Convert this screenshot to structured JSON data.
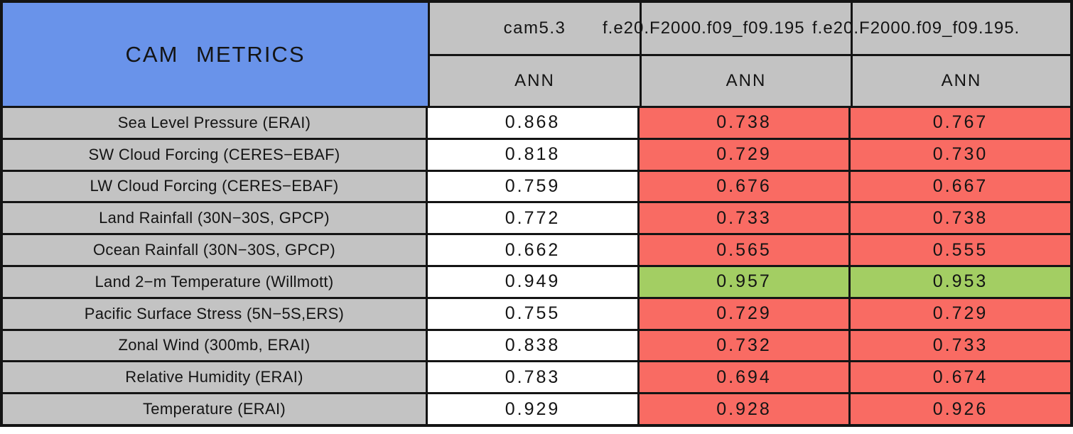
{
  "colors": {
    "header_blue": "#6993EA",
    "cell_gray": "#C3C3C3",
    "worse": "#F96B63",
    "better": "#A3CE63",
    "neutral": "#FFFFFF",
    "border_black": "#141414"
  },
  "chart_data": {
    "type": "table",
    "title": "CAM METRICS",
    "column_headers": {
      "cases": [
        "cam5.3",
        "f.e20.F2000.f09_f09.195",
        "f.e20.F2000.f09_f09.195."
      ],
      "seasons": [
        "ANN",
        "ANN",
        "ANN"
      ]
    },
    "rows": [
      {
        "label": "Sea Level Pressure (ERAI)",
        "values": [
          "0.868",
          "0.738",
          "0.767"
        ],
        "status": [
          "neutral",
          "worse",
          "worse"
        ]
      },
      {
        "label": "SW Cloud Forcing (CERES−EBAF)",
        "values": [
          "0.818",
          "0.729",
          "0.730"
        ],
        "status": [
          "neutral",
          "worse",
          "worse"
        ]
      },
      {
        "label": "LW Cloud Forcing (CERES−EBAF)",
        "values": [
          "0.759",
          "0.676",
          "0.667"
        ],
        "status": [
          "neutral",
          "worse",
          "worse"
        ]
      },
      {
        "label": "Land Rainfall (30N−30S, GPCP)",
        "values": [
          "0.772",
          "0.733",
          "0.738"
        ],
        "status": [
          "neutral",
          "worse",
          "worse"
        ]
      },
      {
        "label": "Ocean Rainfall (30N−30S, GPCP)",
        "values": [
          "0.662",
          "0.565",
          "0.555"
        ],
        "status": [
          "neutral",
          "worse",
          "worse"
        ]
      },
      {
        "label": "Land 2−m Temperature (Willmott)",
        "values": [
          "0.949",
          "0.957",
          "0.953"
        ],
        "status": [
          "neutral",
          "better",
          "better"
        ]
      },
      {
        "label": "Pacific Surface Stress (5N−5S,ERS)",
        "values": [
          "0.755",
          "0.729",
          "0.729"
        ],
        "status": [
          "neutral",
          "worse",
          "worse"
        ]
      },
      {
        "label": "Zonal Wind (300mb, ERAI)",
        "values": [
          "0.838",
          "0.732",
          "0.733"
        ],
        "status": [
          "neutral",
          "worse",
          "worse"
        ]
      },
      {
        "label": "Relative Humidity (ERAI)",
        "values": [
          "0.783",
          "0.694",
          "0.674"
        ],
        "status": [
          "neutral",
          "worse",
          "worse"
        ]
      },
      {
        "label": "Temperature (ERAI)",
        "values": [
          "0.929",
          "0.928",
          "0.926"
        ],
        "status": [
          "neutral",
          "worse",
          "worse"
        ]
      }
    ]
  }
}
